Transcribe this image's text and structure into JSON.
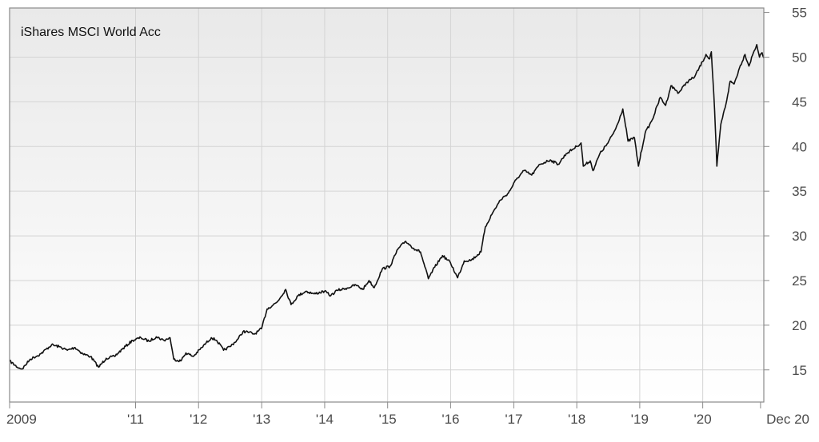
{
  "chart_data": {
    "type": "line",
    "title": "iShares MSCI World Acc",
    "xlabel": "",
    "ylabel": "",
    "ylim": [
      11.4,
      55.5
    ],
    "xlim": [
      "2009-01-01",
      "2020-12-20"
    ],
    "grid": true,
    "y_axis_side": "right",
    "yticks": [
      15,
      20,
      25,
      30,
      35,
      40,
      45,
      50,
      55
    ],
    "xticks": [
      {
        "label": "2009",
        "date": "2009-01-01"
      },
      {
        "label": "'11",
        "date": "2011-01-01"
      },
      {
        "label": "'12",
        "date": "2012-01-01"
      },
      {
        "label": "'13",
        "date": "2013-01-01"
      },
      {
        "label": "'14",
        "date": "2014-01-01"
      },
      {
        "label": "'15",
        "date": "2015-01-01"
      },
      {
        "label": "'16",
        "date": "2016-01-01"
      },
      {
        "label": "'17",
        "date": "2017-01-01"
      },
      {
        "label": "'18",
        "date": "2018-01-01"
      },
      {
        "label": "'19",
        "date": "2019-01-01"
      },
      {
        "label": "'20",
        "date": "2020-01-01"
      },
      {
        "label": "Dec 20",
        "date": "2020-12-01"
      }
    ],
    "colors": {
      "line": "#111111",
      "grid": "#d4d4d4",
      "frame": "#8a8a8a",
      "bg_top": "#e9e9e9",
      "bg_bottom": "#ffffff"
    },
    "series": [
      {
        "name": "",
        "points": [
          [
            "2009-01-01",
            16.0
          ],
          [
            "2009-02-15",
            15.3
          ],
          [
            "2009-03-15",
            15.1
          ],
          [
            "2009-05-01",
            16.2
          ],
          [
            "2009-07-01",
            16.8
          ],
          [
            "2009-09-01",
            17.8
          ],
          [
            "2009-10-15",
            17.6
          ],
          [
            "2009-12-01",
            17.2
          ],
          [
            "2010-01-15",
            17.5
          ],
          [
            "2010-03-01",
            16.8
          ],
          [
            "2010-04-15",
            16.5
          ],
          [
            "2010-06-01",
            15.3
          ],
          [
            "2010-07-15",
            16.3
          ],
          [
            "2010-09-01",
            16.5
          ],
          [
            "2010-10-15",
            17.3
          ],
          [
            "2010-12-15",
            18.3
          ],
          [
            "2011-02-01",
            18.6
          ],
          [
            "2011-03-20",
            18.2
          ],
          [
            "2011-05-01",
            18.7
          ],
          [
            "2011-06-15",
            18.3
          ],
          [
            "2011-07-20",
            18.6
          ],
          [
            "2011-08-10",
            16.2
          ],
          [
            "2011-09-20",
            16.0
          ],
          [
            "2011-10-20",
            16.9
          ],
          [
            "2011-12-01",
            16.5
          ],
          [
            "2012-01-20",
            17.5
          ],
          [
            "2012-03-15",
            18.6
          ],
          [
            "2012-04-15",
            18.3
          ],
          [
            "2012-05-25",
            17.2
          ],
          [
            "2012-07-01",
            17.6
          ],
          [
            "2012-08-15",
            18.4
          ],
          [
            "2012-09-15",
            19.3
          ],
          [
            "2012-10-20",
            19.2
          ],
          [
            "2012-11-20",
            19.0
          ],
          [
            "2012-12-31",
            19.6
          ],
          [
            "2013-02-01",
            21.8
          ],
          [
            "2013-04-01",
            22.6
          ],
          [
            "2013-05-20",
            24.0
          ],
          [
            "2013-06-20",
            22.3
          ],
          [
            "2013-07-31",
            23.3
          ],
          [
            "2013-09-15",
            23.8
          ],
          [
            "2013-11-01",
            23.5
          ],
          [
            "2013-12-31",
            23.8
          ],
          [
            "2014-02-05",
            23.3
          ],
          [
            "2014-03-15",
            23.9
          ],
          [
            "2014-05-01",
            24.1
          ],
          [
            "2014-07-01",
            24.5
          ],
          [
            "2014-08-10",
            24.0
          ],
          [
            "2014-09-15",
            25.0
          ],
          [
            "2014-10-15",
            24.2
          ],
          [
            "2014-12-01",
            26.3
          ],
          [
            "2015-01-15",
            26.6
          ],
          [
            "2015-03-01",
            28.5
          ],
          [
            "2015-04-15",
            29.4
          ],
          [
            "2015-06-01",
            28.6
          ],
          [
            "2015-07-10",
            28.2
          ],
          [
            "2015-08-25",
            25.2
          ],
          [
            "2015-10-01",
            26.5
          ],
          [
            "2015-11-15",
            27.8
          ],
          [
            "2015-12-31",
            27.0
          ],
          [
            "2016-02-10",
            25.3
          ],
          [
            "2016-03-20",
            27.2
          ],
          [
            "2016-05-01",
            27.3
          ],
          [
            "2016-06-25",
            28.2
          ],
          [
            "2016-07-20",
            31.0
          ],
          [
            "2016-09-01",
            32.6
          ],
          [
            "2016-10-15",
            34.0
          ],
          [
            "2016-12-01",
            34.8
          ],
          [
            "2017-01-15",
            36.3
          ],
          [
            "2017-03-01",
            37.3
          ],
          [
            "2017-04-15",
            36.8
          ],
          [
            "2017-06-01",
            38.0
          ],
          [
            "2017-08-01",
            38.5
          ],
          [
            "2017-09-15",
            38.0
          ],
          [
            "2017-11-01",
            39.2
          ],
          [
            "2017-12-31",
            40.0
          ],
          [
            "2018-01-26",
            40.4
          ],
          [
            "2018-02-08",
            37.8
          ],
          [
            "2018-03-20",
            38.4
          ],
          [
            "2018-04-05",
            37.3
          ],
          [
            "2018-05-15",
            39.2
          ],
          [
            "2018-07-01",
            40.4
          ],
          [
            "2018-08-15",
            42.0
          ],
          [
            "2018-09-25",
            44.2
          ],
          [
            "2018-10-25",
            40.6
          ],
          [
            "2018-12-01",
            41.0
          ],
          [
            "2018-12-24",
            37.8
          ],
          [
            "2019-02-01",
            41.5
          ],
          [
            "2019-03-15",
            43.0
          ],
          [
            "2019-04-30",
            45.5
          ],
          [
            "2019-05-31",
            44.6
          ],
          [
            "2019-07-01",
            46.8
          ],
          [
            "2019-08-15",
            46.0
          ],
          [
            "2019-10-01",
            47.2
          ],
          [
            "2019-11-15",
            47.8
          ],
          [
            "2019-12-31",
            49.5
          ],
          [
            "2020-01-20",
            50.3
          ],
          [
            "2020-02-10",
            49.8
          ],
          [
            "2020-02-20",
            50.6
          ],
          [
            "2020-03-10",
            44.0
          ],
          [
            "2020-03-23",
            37.8
          ],
          [
            "2020-04-15",
            42.5
          ],
          [
            "2020-05-15",
            44.8
          ],
          [
            "2020-06-08",
            47.3
          ],
          [
            "2020-07-01",
            47.0
          ],
          [
            "2020-08-01",
            48.8
          ],
          [
            "2020-09-02",
            50.3
          ],
          [
            "2020-09-25",
            49.0
          ],
          [
            "2020-10-15",
            50.2
          ],
          [
            "2020-11-09",
            51.4
          ],
          [
            "2020-11-25",
            50.0
          ],
          [
            "2020-12-10",
            50.5
          ],
          [
            "2020-12-20",
            49.9
          ]
        ]
      }
    ]
  }
}
